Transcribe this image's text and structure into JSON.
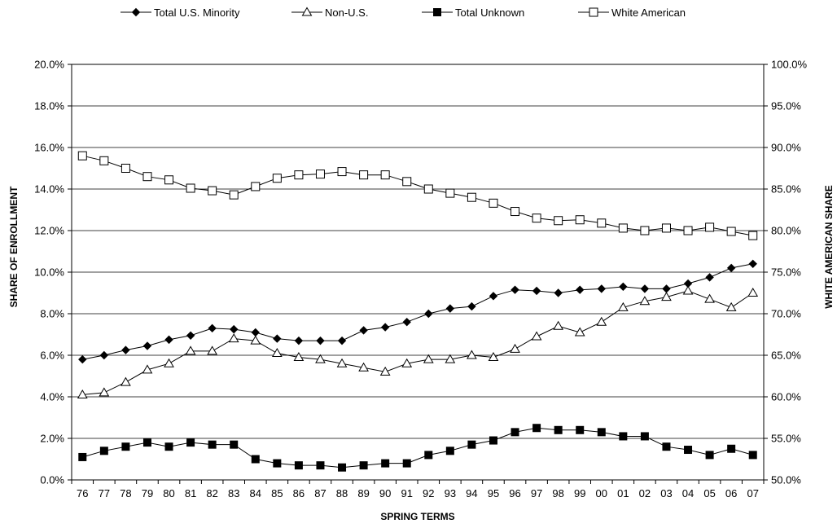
{
  "chart_data": {
    "type": "line",
    "title": "",
    "xlabel": "SPRING TERMS",
    "ylabel": "SHARE OF ENROLLMENT",
    "y2label": "WHITE AMERICAN SHARE",
    "ylim": [
      0,
      20
    ],
    "y2lim": [
      50,
      100
    ],
    "yticks": [
      "0.0%",
      "2.0%",
      "4.0%",
      "6.0%",
      "8.0%",
      "10.0%",
      "12.0%",
      "14.0%",
      "16.0%",
      "18.0%",
      "20.0%"
    ],
    "y2ticks": [
      "50.0%",
      "55.0%",
      "60.0%",
      "65.0%",
      "70.0%",
      "75.0%",
      "80.0%",
      "85.0%",
      "90.0%",
      "95.0%",
      "100.0%"
    ],
    "grid": true,
    "legend_position": "top",
    "categories": [
      "76",
      "77",
      "78",
      "79",
      "80",
      "81",
      "82",
      "83",
      "84",
      "85",
      "86",
      "87",
      "88",
      "89",
      "90",
      "91",
      "92",
      "93",
      "94",
      "95",
      "96",
      "97",
      "98",
      "99",
      "00",
      "01",
      "02",
      "03",
      "04",
      "05",
      "06",
      "07"
    ],
    "series": [
      {
        "name": "Total U.S.  Minority",
        "marker": "filled-diamond",
        "axis": "left",
        "color": "#000000",
        "values": [
          5.8,
          6.0,
          6.25,
          6.45,
          6.75,
          6.95,
          7.3,
          7.25,
          7.1,
          6.8,
          6.7,
          6.7,
          6.7,
          7.2,
          7.35,
          7.6,
          8.0,
          8.25,
          8.35,
          8.85,
          9.15,
          9.1,
          9.0,
          9.15,
          9.2,
          9.3,
          9.2,
          9.2,
          9.45,
          9.75,
          10.2,
          10.4
        ]
      },
      {
        "name": "Non-U.S.",
        "marker": "open-triangle",
        "axis": "left",
        "color": "#000000",
        "values": [
          4.1,
          4.2,
          4.7,
          5.3,
          5.6,
          6.2,
          6.2,
          6.8,
          6.7,
          6.1,
          5.9,
          5.8,
          5.6,
          5.4,
          5.2,
          5.6,
          5.8,
          5.8,
          6.0,
          5.9,
          6.3,
          6.9,
          7.4,
          7.1,
          7.6,
          8.3,
          8.6,
          8.8,
          9.1,
          8.7,
          8.3,
          9.0
        ]
      },
      {
        "name": "Total Unknown",
        "marker": "filled-square",
        "axis": "left",
        "color": "#000000",
        "values": [
          1.1,
          1.4,
          1.6,
          1.8,
          1.6,
          1.8,
          1.7,
          1.7,
          1.0,
          0.8,
          0.7,
          0.7,
          0.6,
          0.7,
          0.8,
          0.8,
          1.2,
          1.4,
          1.7,
          1.9,
          2.3,
          2.5,
          2.4,
          2.4,
          2.3,
          2.1,
          2.1,
          1.6,
          1.45,
          1.2,
          1.5,
          1.2
        ]
      },
      {
        "name": "White American",
        "marker": "open-square",
        "axis": "right",
        "color": "#000000",
        "values": [
          89.0,
          88.4,
          87.5,
          86.5,
          86.1,
          85.1,
          84.8,
          84.3,
          85.3,
          86.3,
          86.7,
          86.8,
          87.1,
          86.7,
          86.7,
          85.9,
          85.0,
          84.5,
          84.0,
          83.3,
          82.3,
          81.5,
          81.2,
          81.3,
          80.9,
          80.3,
          80.0,
          80.3,
          80.0,
          80.4,
          79.9,
          79.4
        ]
      }
    ]
  }
}
